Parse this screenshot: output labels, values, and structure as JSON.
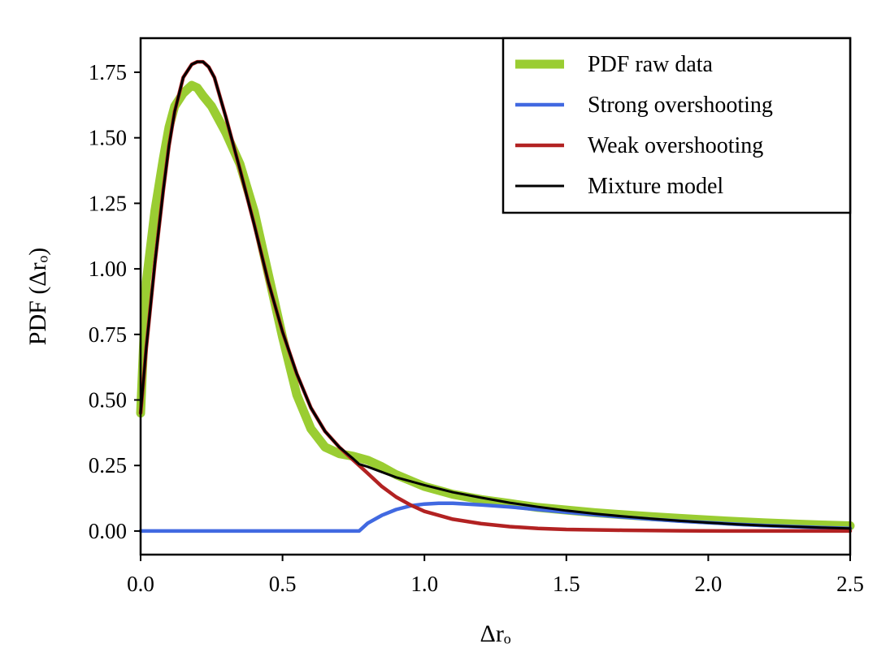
{
  "chart_data": {
    "type": "line",
    "title": "",
    "xlabel": "Δrₒ",
    "ylabel": "PDF (Δrₒ)",
    "xlim": [
      0.0,
      2.5
    ],
    "ylim": [
      -0.09,
      1.88
    ],
    "xticks": [
      "0.0",
      "0.5",
      "1.0",
      "1.5",
      "2.0",
      "2.5"
    ],
    "yticks": [
      "0.00",
      "0.25",
      "0.50",
      "0.75",
      "1.00",
      "1.25",
      "1.50",
      "1.75"
    ],
    "legend_position": "top-right",
    "grid": false,
    "series": [
      {
        "name": "PDF raw data",
        "color": "#9acd32",
        "x": [
          0.0,
          0.02,
          0.05,
          0.08,
          0.1,
          0.12,
          0.15,
          0.18,
          0.2,
          0.22,
          0.25,
          0.3,
          0.35,
          0.4,
          0.45,
          0.5,
          0.55,
          0.6,
          0.65,
          0.7,
          0.75,
          0.8,
          0.85,
          0.9,
          1.0,
          1.1,
          1.2,
          1.3,
          1.4,
          1.5,
          1.6,
          1.7,
          1.8,
          1.9,
          2.0,
          2.1,
          2.2,
          2.3,
          2.4,
          2.5
        ],
        "values": [
          0.45,
          0.95,
          1.22,
          1.42,
          1.54,
          1.62,
          1.67,
          1.7,
          1.69,
          1.66,
          1.62,
          1.52,
          1.4,
          1.22,
          0.98,
          0.74,
          0.52,
          0.39,
          0.32,
          0.295,
          0.285,
          0.27,
          0.245,
          0.215,
          0.17,
          0.14,
          0.12,
          0.105,
          0.09,
          0.08,
          0.07,
          0.062,
          0.055,
          0.048,
          0.042,
          0.036,
          0.031,
          0.027,
          0.023,
          0.02
        ]
      },
      {
        "name": "Strong overshooting",
        "color": "#4169e1",
        "x": [
          0.0,
          0.2,
          0.4,
          0.6,
          0.77,
          0.8,
          0.85,
          0.9,
          0.95,
          1.0,
          1.05,
          1.1,
          1.2,
          1.3,
          1.4,
          1.5,
          1.6,
          1.7,
          1.8,
          1.9,
          2.0,
          2.1,
          2.2,
          2.3,
          2.4,
          2.5
        ],
        "values": [
          0.0,
          0.0,
          0.0,
          0.0,
          0.0,
          0.03,
          0.06,
          0.082,
          0.096,
          0.103,
          0.106,
          0.106,
          0.1,
          0.092,
          0.082,
          0.072,
          0.062,
          0.053,
          0.045,
          0.038,
          0.032,
          0.026,
          0.021,
          0.017,
          0.013,
          0.01
        ]
      },
      {
        "name": "Weak overshooting",
        "color": "#b22222",
        "x": [
          0.0,
          0.02,
          0.05,
          0.08,
          0.1,
          0.12,
          0.15,
          0.18,
          0.2,
          0.22,
          0.24,
          0.26,
          0.3,
          0.35,
          0.4,
          0.45,
          0.5,
          0.55,
          0.6,
          0.65,
          0.7,
          0.75,
          0.8,
          0.85,
          0.9,
          0.95,
          1.0,
          1.1,
          1.2,
          1.3,
          1.4,
          1.5,
          1.7,
          1.9,
          2.1,
          2.3,
          2.5
        ],
        "values": [
          0.45,
          0.7,
          1.02,
          1.3,
          1.47,
          1.6,
          1.73,
          1.78,
          1.79,
          1.79,
          1.77,
          1.73,
          1.58,
          1.38,
          1.17,
          0.95,
          0.76,
          0.6,
          0.47,
          0.38,
          0.32,
          0.27,
          0.22,
          0.17,
          0.13,
          0.1,
          0.075,
          0.045,
          0.028,
          0.017,
          0.01,
          0.006,
          0.003,
          0.001,
          0.0,
          0.0,
          0.0
        ]
      },
      {
        "name": "Mixture model",
        "color": "#000000",
        "x": [
          0.0,
          0.02,
          0.05,
          0.08,
          0.1,
          0.12,
          0.15,
          0.18,
          0.2,
          0.22,
          0.24,
          0.26,
          0.3,
          0.35,
          0.4,
          0.45,
          0.5,
          0.55,
          0.6,
          0.65,
          0.7,
          0.75,
          0.77,
          0.8,
          0.85,
          0.9,
          0.95,
          1.0,
          1.1,
          1.2,
          1.3,
          1.4,
          1.5,
          1.6,
          1.7,
          1.8,
          1.9,
          2.0,
          2.1,
          2.2,
          2.3,
          2.4,
          2.5
        ],
        "values": [
          0.45,
          0.7,
          1.02,
          1.3,
          1.47,
          1.6,
          1.73,
          1.78,
          1.79,
          1.79,
          1.77,
          1.73,
          1.58,
          1.38,
          1.17,
          0.95,
          0.76,
          0.6,
          0.47,
          0.38,
          0.32,
          0.275,
          0.255,
          0.245,
          0.225,
          0.205,
          0.19,
          0.175,
          0.148,
          0.127,
          0.108,
          0.092,
          0.078,
          0.066,
          0.056,
          0.047,
          0.039,
          0.032,
          0.026,
          0.021,
          0.017,
          0.013,
          0.01
        ]
      }
    ]
  }
}
